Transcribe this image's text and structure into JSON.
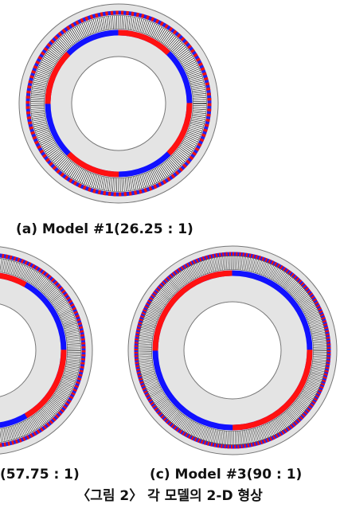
{
  "labels": {
    "a": "(a) Model #1(26.25 : 1)",
    "b": "(57.75 : 1)",
    "c": "(c) Model #3(90 : 1)"
  },
  "caption": "〈그림 2〉 각 모델의 2-D 형상"
}
